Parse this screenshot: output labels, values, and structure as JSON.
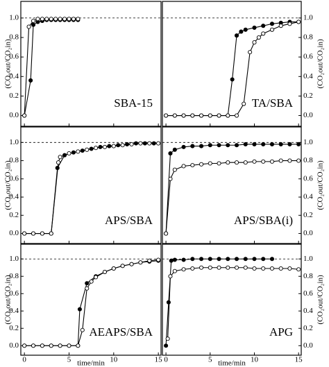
{
  "chart_data": [
    {
      "type": "line",
      "title": "SBA-15",
      "ylabel": "(CO₂out/CO₂in)",
      "yaxis_side": "left",
      "xlim": [
        -0.4,
        15.3
      ],
      "ylim": [
        -0.11,
        1.17
      ],
      "xticks": [
        0,
        5,
        10,
        15
      ],
      "yticks": [
        {
          "value": 0,
          "label": "0.0"
        },
        0.2,
        0.4,
        0.6,
        0.8,
        {
          "value": 1,
          "label": "1.0"
        }
      ],
      "reference_line": 1,
      "series": [
        {
          "marker": "filled",
          "color": "#000000",
          "x": [
            0,
            0.7,
            1,
            1.5,
            2,
            2.5,
            3,
            3.5,
            4,
            4.5,
            5,
            5.5,
            6
          ],
          "values": [
            0,
            0.36,
            0.93,
            0.96,
            0.97,
            0.98,
            0.98,
            0.98,
            0.98,
            0.98,
            0.98,
            0.98,
            0.98
          ]
        },
        {
          "marker": "open",
          "color": "#000000",
          "x": [
            0,
            0.5,
            1,
            1.5,
            2,
            2.5,
            3,
            3.5,
            4,
            4.5,
            5,
            5.5,
            6
          ],
          "values": [
            0,
            0.91,
            0.97,
            0.99,
            0.99,
            0.99,
            0.99,
            0.99,
            0.99,
            0.99,
            0.99,
            0.99,
            0.99
          ]
        }
      ]
    },
    {
      "type": "line",
      "title": "TA/SBA",
      "ylabel": "(CO₂out/CO₂in)",
      "yaxis_side": "right",
      "xlim": [
        -0.4,
        15.3
      ],
      "ylim": [
        -0.11,
        1.17
      ],
      "xticks": [
        0,
        5,
        10,
        15
      ],
      "yticks": [
        {
          "value": 0,
          "label": "0.0"
        },
        0.2,
        0.4,
        0.6,
        0.8,
        {
          "value": 1,
          "label": "1.0"
        }
      ],
      "reference_line": 1,
      "series": [
        {
          "marker": "filled",
          "color": "#000000",
          "x": [
            0,
            1,
            2,
            3,
            4,
            5,
            6,
            7,
            7.5,
            8,
            8.5,
            9,
            10,
            11,
            12,
            13,
            14,
            15
          ],
          "values": [
            0,
            0,
            0,
            0,
            0,
            0,
            0,
            0,
            0.37,
            0.82,
            0.86,
            0.88,
            0.9,
            0.92,
            0.94,
            0.95,
            0.96,
            0.96
          ]
        },
        {
          "marker": "open",
          "color": "#000000",
          "x": [
            0,
            1,
            2,
            3,
            4,
            5,
            6,
            7,
            8,
            8.8,
            9.5,
            10,
            10.5,
            11,
            12,
            13,
            14,
            15
          ],
          "values": [
            0,
            0,
            0,
            0,
            0,
            0,
            0,
            0,
            0,
            0.12,
            0.65,
            0.75,
            0.8,
            0.84,
            0.88,
            0.92,
            0.94,
            0.96
          ]
        }
      ]
    },
    {
      "type": "line",
      "title": "APS/SBA",
      "ylabel": "(CO₂out/CO₂in)",
      "yaxis_side": "left",
      "xlim": [
        -0.4,
        15.3
      ],
      "ylim": [
        -0.11,
        1.17
      ],
      "xticks": [
        0,
        5,
        10,
        15
      ],
      "yticks": [
        {
          "value": 0,
          "label": "0.0"
        },
        0.2,
        0.4,
        0.6,
        0.8,
        {
          "value": 1,
          "label": "1.0"
        }
      ],
      "reference_line": 1,
      "series": [
        {
          "marker": "filled",
          "color": "#000000",
          "x": [
            0,
            1,
            2,
            3,
            3.7,
            4.5,
            5.5,
            6.5,
            7.5,
            8.5,
            9.5,
            10.5,
            11.5,
            12.5,
            13.5,
            14.5
          ],
          "values": [
            0,
            0,
            0,
            0,
            0.72,
            0.86,
            0.89,
            0.91,
            0.93,
            0.95,
            0.96,
            0.97,
            0.98,
            0.99,
            0.99,
            0.99
          ]
        },
        {
          "marker": "open",
          "color": "#000000",
          "x": [
            0,
            1,
            2,
            3,
            3.8,
            4,
            5,
            6,
            7,
            8,
            9,
            10,
            11,
            12,
            13,
            14,
            15
          ],
          "values": [
            0,
            0,
            0,
            0,
            0.78,
            0.84,
            0.88,
            0.9,
            0.92,
            0.94,
            0.95,
            0.96,
            0.97,
            0.98,
            0.99,
            0.99,
            0.99
          ]
        }
      ]
    },
    {
      "type": "line",
      "title": "APS/SBA(i)",
      "ylabel": "(CO₂out/CO₂in)",
      "yaxis_side": "right",
      "xlim": [
        -0.4,
        15.3
      ],
      "ylim": [
        -0.11,
        1.17
      ],
      "xticks": [
        0,
        5,
        10,
        15
      ],
      "yticks": [
        {
          "value": 0,
          "label": "0.0"
        },
        0.2,
        0.4,
        0.6,
        0.8,
        {
          "value": 1,
          "label": "1.0"
        }
      ],
      "reference_line": 1,
      "series": [
        {
          "marker": "filled",
          "color": "#000000",
          "x": [
            0,
            0.5,
            1,
            2,
            3,
            4,
            5,
            6,
            7,
            8,
            9,
            10,
            11,
            12,
            13,
            14,
            15
          ],
          "values": [
            0,
            0.88,
            0.92,
            0.95,
            0.96,
            0.96,
            0.97,
            0.97,
            0.97,
            0.97,
            0.98,
            0.98,
            0.98,
            0.98,
            0.98,
            0.98,
            0.98
          ]
        },
        {
          "marker": "open",
          "color": "#000000",
          "x": [
            0,
            0.5,
            1,
            2,
            3,
            4,
            5,
            6,
            7,
            8,
            9,
            10,
            11,
            12,
            13,
            14,
            15
          ],
          "values": [
            0,
            0.6,
            0.7,
            0.74,
            0.75,
            0.76,
            0.77,
            0.77,
            0.78,
            0.78,
            0.78,
            0.79,
            0.79,
            0.79,
            0.8,
            0.8,
            0.8
          ]
        }
      ]
    },
    {
      "type": "line",
      "title": "AEAPS/SBA",
      "ylabel": "(CO₂out/CO₂in)",
      "yaxis_side": "left",
      "xlabel": "time/min",
      "xlim": [
        -0.4,
        15.3
      ],
      "ylim": [
        -0.11,
        1.17
      ],
      "xticks": [
        0,
        5,
        10,
        15
      ],
      "yticks": [
        {
          "value": 0,
          "label": "0.0"
        },
        0.2,
        0.4,
        0.6,
        0.8,
        {
          "value": 1,
          "label": "1.0"
        }
      ],
      "reference_line": 1,
      "series": [
        {
          "marker": "filled",
          "color": "#000000",
          "x": [
            0,
            1,
            2,
            3,
            4,
            5,
            6,
            6.2,
            7,
            8,
            9,
            10,
            11,
            12,
            13,
            14,
            15
          ],
          "values": [
            0,
            0,
            0,
            0,
            0,
            0,
            0,
            0.42,
            0.72,
            0.8,
            0.85,
            0.89,
            0.92,
            0.94,
            0.96,
            0.97,
            0.98
          ]
        },
        {
          "marker": "open",
          "color": "#000000",
          "x": [
            0,
            1,
            2,
            3,
            4,
            5,
            6,
            6.5,
            7,
            7.5,
            8,
            9,
            10,
            11,
            12,
            13,
            14,
            15
          ],
          "values": [
            0,
            0,
            0,
            0,
            0,
            0,
            0,
            0.18,
            0.66,
            0.74,
            0.79,
            0.85,
            0.89,
            0.92,
            0.94,
            0.96,
            0.98,
            0.99
          ]
        }
      ]
    },
    {
      "type": "line",
      "title": "APG",
      "ylabel": "(CO₂out/CO₂in)",
      "yaxis_side": "right",
      "xlabel": "time/min",
      "xlim": [
        -0.4,
        15.3
      ],
      "ylim": [
        -0.11,
        1.17
      ],
      "xticks": [
        0,
        5,
        10,
        15
      ],
      "yticks": [
        {
          "value": 0,
          "label": "0.0"
        },
        0.2,
        0.4,
        0.6,
        0.8,
        {
          "value": 1,
          "label": "1.0"
        }
      ],
      "reference_line": 1,
      "series": [
        {
          "marker": "filled",
          "color": "#000000",
          "x": [
            0,
            0.3,
            0.6,
            1,
            2,
            3,
            4,
            5,
            6,
            7,
            8,
            9,
            10,
            11,
            12
          ],
          "values": [
            0,
            0.5,
            0.98,
            0.99,
            0.99,
            1,
            1,
            1,
            1,
            1,
            1,
            1,
            1,
            1,
            1
          ]
        },
        {
          "marker": "open",
          "color": "#000000",
          "x": [
            0.2,
            0.5,
            1,
            2,
            3,
            4,
            5,
            6,
            7,
            8,
            9,
            10,
            11,
            12,
            13,
            14,
            15
          ],
          "values": [
            0.08,
            0.8,
            0.86,
            0.88,
            0.89,
            0.9,
            0.9,
            0.9,
            0.9,
            0.9,
            0.9,
            0.89,
            0.89,
            0.89,
            0.89,
            0.89,
            0.88
          ]
        }
      ]
    }
  ]
}
